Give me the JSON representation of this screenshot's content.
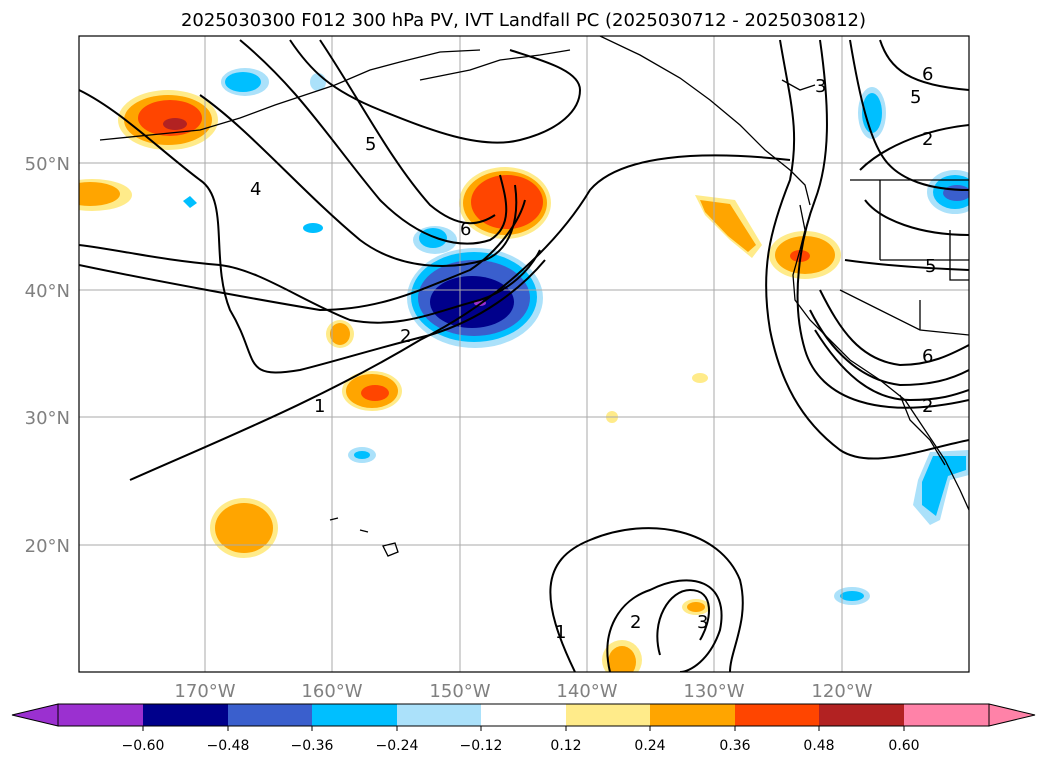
{
  "title": "2025030300 F012 300 hPa PV, IVT Landfall PC (2025030712 - 2025030812)",
  "lat_labels": [
    "50°N",
    "40°N",
    "30°N",
    "20°N"
  ],
  "lon_labels": [
    "170°W",
    "160°W",
    "150°W",
    "140°W",
    "130°W",
    "120°W"
  ],
  "colorbar": {
    "ticks": [
      "−0.60",
      "−0.48",
      "−0.36",
      "−0.24",
      "−0.12",
      "0.12",
      "0.24",
      "0.36",
      "0.48",
      "0.60"
    ],
    "colors": [
      "#9b30d0",
      "#00008b",
      "#3a5fcd",
      "#00bfff",
      "#abe1fa",
      "#ffffff",
      "#ffeb8a",
      "#ffa500",
      "#ff4500",
      "#b22222",
      "#ff82a8"
    ]
  },
  "contour_labels": [
    "1",
    "2",
    "4",
    "5",
    "6",
    "1",
    "2",
    "3",
    "3",
    "2",
    "5",
    "6",
    "5",
    "6",
    "2"
  ],
  "map": {
    "lat_range": [
      10,
      60
    ],
    "lon_range": [
      -180,
      -110
    ],
    "shading_colors": {
      "neg_strong": "#00008b",
      "neg_mid": "#3a5fcd",
      "neg_weak": "#00bfff",
      "neg_faint": "#abe1fa",
      "pos_faint": "#ffeb8a",
      "pos_weak": "#ffa500",
      "pos_mid": "#ff4500",
      "pos_strong": "#b22222"
    }
  }
}
